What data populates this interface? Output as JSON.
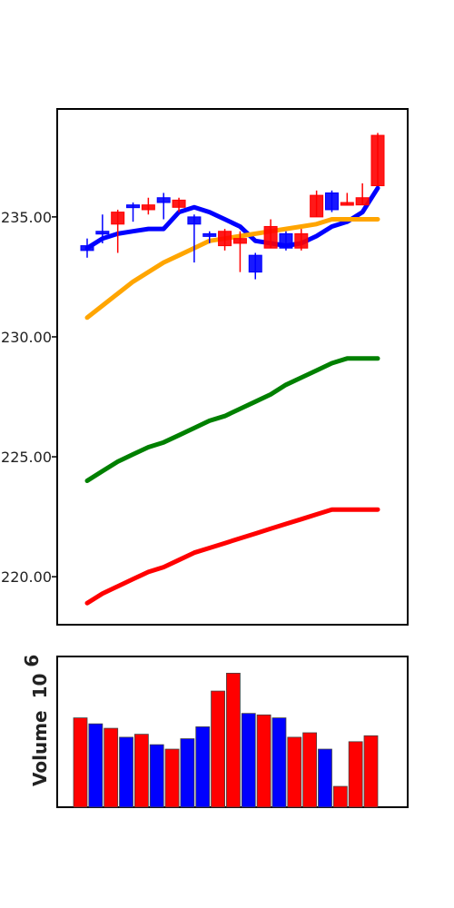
{
  "chart_data": [
    {
      "type": "candlestick",
      "ylim": [
        218,
        239.5
      ],
      "y_ticks": [
        220,
        225,
        230,
        235
      ],
      "y_tick_labels": [
        "220.00",
        "225.00",
        "230.00",
        "235.00"
      ],
      "colors": {
        "up": "#ff0000",
        "down": "#0000ff"
      },
      "candles": [
        {
          "open": 233.8,
          "close": 233.6,
          "high": 234.1,
          "low": 233.3
        },
        {
          "open": 234.4,
          "close": 234.3,
          "high": 235.1,
          "low": 233.9
        },
        {
          "open": 234.7,
          "close": 235.2,
          "high": 235.3,
          "low": 233.5
        },
        {
          "open": 235.5,
          "close": 235.4,
          "high": 235.6,
          "low": 234.8
        },
        {
          "open": 235.3,
          "close": 235.5,
          "high": 235.8,
          "low": 235.1
        },
        {
          "open": 235.8,
          "close": 235.6,
          "high": 236.0,
          "low": 234.9
        },
        {
          "open": 235.4,
          "close": 235.7,
          "high": 235.8,
          "low": 235.2
        },
        {
          "open": 235.0,
          "close": 234.7,
          "high": 235.1,
          "low": 233.1
        },
        {
          "open": 234.3,
          "close": 234.2,
          "high": 234.4,
          "low": 233.9
        },
        {
          "open": 233.8,
          "close": 234.4,
          "high": 234.5,
          "low": 233.6
        },
        {
          "open": 233.9,
          "close": 234.1,
          "high": 234.4,
          "low": 232.7
        },
        {
          "open": 233.4,
          "close": 232.7,
          "high": 233.5,
          "low": 232.4
        },
        {
          "open": 233.7,
          "close": 234.6,
          "high": 234.9,
          "low": 233.7
        },
        {
          "open": 234.3,
          "close": 233.7,
          "high": 234.4,
          "low": 233.6
        },
        {
          "open": 233.7,
          "close": 234.3,
          "high": 234.5,
          "low": 233.6
        },
        {
          "open": 235.0,
          "close": 235.9,
          "high": 236.1,
          "low": 235.0
        },
        {
          "open": 236.0,
          "close": 235.3,
          "high": 236.1,
          "low": 235.2
        },
        {
          "open": 235.6,
          "close": 235.6,
          "high": 236.0,
          "low": 235.5
        },
        {
          "open": 235.5,
          "close": 235.8,
          "high": 236.4,
          "low": 235.5
        },
        {
          "open": 236.3,
          "close": 238.4,
          "high": 238.5,
          "low": 236.3
        }
      ],
      "lines": [
        {
          "color": "#0000ff",
          "values": [
            233.7,
            234.1,
            234.3,
            234.4,
            234.5,
            234.5,
            235.2,
            235.4,
            235.2,
            234.9,
            234.6,
            234.0,
            233.9,
            233.8,
            233.9,
            234.2,
            234.6,
            234.8,
            235.2,
            236.2
          ]
        },
        {
          "color": "#ffa500",
          "values": [
            230.8,
            231.3,
            231.8,
            232.3,
            232.7,
            233.1,
            233.4,
            233.7,
            234.0,
            234.1,
            234.2,
            234.3,
            234.4,
            234.5,
            234.6,
            234.7,
            234.9,
            234.9,
            234.9,
            234.9
          ]
        },
        {
          "color": "#008000",
          "values": [
            224.0,
            224.4,
            224.8,
            225.1,
            225.4,
            225.6,
            225.9,
            226.2,
            226.5,
            226.7,
            227.0,
            227.3,
            227.6,
            228.0,
            228.3,
            228.6,
            228.9,
            229.1,
            229.1,
            229.1
          ]
        },
        {
          "color": "#ff0000",
          "values": [
            218.9,
            219.3,
            219.6,
            219.9,
            220.2,
            220.4,
            220.7,
            221.0,
            221.2,
            221.4,
            221.6,
            221.8,
            222.0,
            222.2,
            222.4,
            222.6,
            222.8,
            222.8,
            222.8,
            222.8
          ]
        }
      ]
    },
    {
      "type": "bar",
      "ylabel": "Volume",
      "ylabel_exponent": "6",
      "ylabel_base": "10",
      "ylim": [
        0,
        100
      ],
      "values": [
        60,
        56,
        53,
        47,
        49,
        42,
        39,
        46,
        54,
        78,
        90,
        63,
        62,
        60,
        47,
        50,
        39,
        14,
        44,
        48
      ],
      "colors": [
        "#ff0000",
        "#0000ff",
        "#ff0000",
        "#0000ff",
        "#ff0000",
        "#0000ff",
        "#ff0000",
        "#0000ff",
        "#0000ff",
        "#ff0000",
        "#ff0000",
        "#0000ff",
        "#ff0000",
        "#0000ff",
        "#ff0000",
        "#ff0000",
        "#0000ff",
        "#ff0000",
        "#ff0000",
        "#ff0000"
      ]
    }
  ]
}
